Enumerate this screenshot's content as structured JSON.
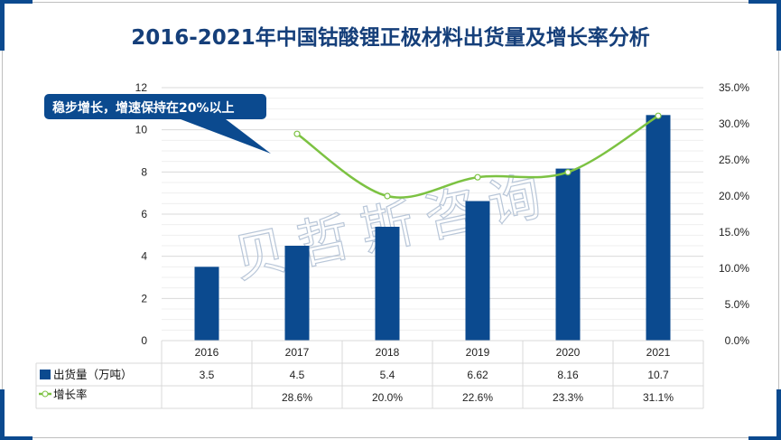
{
  "chart_data": {
    "type": "bar+line",
    "title": "2016-2021年中国钴酸锂正极材料出货量及增长率分析",
    "categories": [
      "2016",
      "2017",
      "2018",
      "2019",
      "2020",
      "2021"
    ],
    "series": [
      {
        "name": "出货量（万吨）",
        "type": "bar",
        "axis": "left",
        "values": [
          3.5,
          4.5,
          5.4,
          6.62,
          8.16,
          10.7
        ],
        "labels": [
          "3.5",
          "4.5",
          "5.4",
          "6.62",
          "8.16",
          "10.7"
        ],
        "color": "#0b4a8f"
      },
      {
        "name": "增长率",
        "type": "line",
        "axis": "right",
        "values": [
          null,
          28.6,
          20.0,
          22.6,
          23.3,
          31.1
        ],
        "labels": [
          "",
          "28.6%",
          "20.0%",
          "22.6%",
          "23.3%",
          "31.1%"
        ],
        "color": "#7cc242"
      }
    ],
    "left_axis": {
      "ylim": [
        0,
        12
      ],
      "ticks": [
        "0",
        "2",
        "4",
        "6",
        "8",
        "10",
        "12"
      ]
    },
    "right_axis": {
      "ylim": [
        0,
        35
      ],
      "ticks": [
        "0.0%",
        "5.0%",
        "10.0%",
        "15.0%",
        "20.0%",
        "25.0%",
        "30.0%",
        "35.0%"
      ]
    },
    "annotation": "稳步增长，增速保持在20%以上",
    "watermark": "贝哲斯咨询"
  }
}
